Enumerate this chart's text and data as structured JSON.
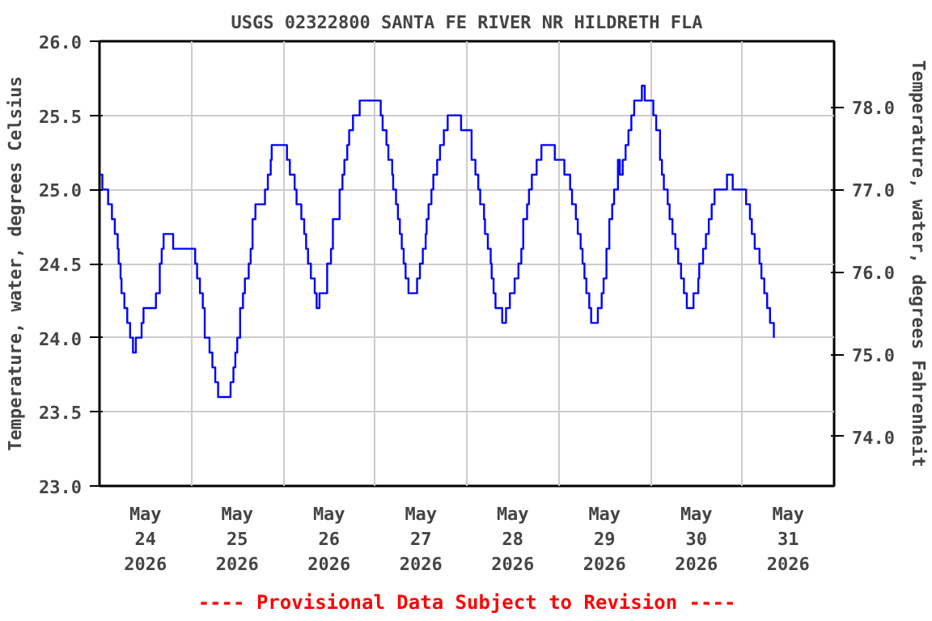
{
  "chart_data": {
    "type": "step",
    "title": "USGS 02322800 SANTA FE RIVER NR HILDRETH FLA",
    "ylabel": "Temperature, water, degrees Celsius",
    "y2label": "Temperature, water, degrees Fahrenheit",
    "annotations": [
      "---- Provisional Data Subject to Revision ----"
    ],
    "x": [
      "2026-05-24T00:00",
      "2026-05-24T00:45",
      "2026-05-24T02:15",
      "2026-05-24T03:15",
      "2026-05-24T04:00",
      "2026-05-24T04:45",
      "2026-05-24T05:00",
      "2026-05-24T05:30",
      "2026-05-24T05:45",
      "2026-05-24T06:30",
      "2026-05-24T07:15",
      "2026-05-24T08:00",
      "2026-05-24T08:45",
      "2026-05-24T09:30",
      "2026-05-24T11:00",
      "2026-05-24T11:30",
      "2026-05-24T14:15",
      "2026-05-24T14:45",
      "2026-05-24T15:45",
      "2026-05-24T16:15",
      "2026-05-24T16:45",
      "2026-05-24T18:30",
      "2026-05-24T19:15",
      "2026-05-25T00:30",
      "2026-05-25T01:00",
      "2026-05-25T01:30",
      "2026-05-25T02:15",
      "2026-05-25T03:00",
      "2026-05-25T03:30",
      "2026-05-25T04:45",
      "2026-05-25T05:30",
      "2026-05-25T06:15",
      "2026-05-25T07:00",
      "2026-05-25T09:30",
      "2026-05-25T10:15",
      "2026-05-25T11:00",
      "2026-05-25T11:30",
      "2026-05-25T12:00",
      "2026-05-25T12:45",
      "2026-05-25T13:30",
      "2026-05-25T14:00",
      "2026-05-25T15:00",
      "2026-05-25T15:30",
      "2026-05-25T16:00",
      "2026-05-25T16:45",
      "2026-05-25T18:30",
      "2026-05-25T19:15",
      "2026-05-25T20:00",
      "2026-05-25T20:45",
      "2026-05-25T21:00",
      "2026-05-26T00:30",
      "2026-05-26T01:00",
      "2026-05-26T01:45",
      "2026-05-26T03:00",
      "2026-05-26T03:30",
      "2026-05-26T04:45",
      "2026-05-26T05:30",
      "2026-05-26T06:00",
      "2026-05-26T06:30",
      "2026-05-26T07:15",
      "2026-05-26T08:15",
      "2026-05-26T08:45",
      "2026-05-26T09:30",
      "2026-05-26T11:00",
      "2026-05-26T11:30",
      "2026-05-26T12:30",
      "2026-05-26T13:00",
      "2026-05-26T14:15",
      "2026-05-26T14:45",
      "2026-05-26T15:30",
      "2026-05-26T16:00",
      "2026-05-26T16:45",
      "2026-05-26T17:15",
      "2026-05-26T18:15",
      "2026-05-26T19:00",
      "2026-05-26T20:00",
      "2026-05-27T01:00",
      "2026-05-27T01:30",
      "2026-05-27T02:00",
      "2026-05-27T03:00",
      "2026-05-27T03:30",
      "2026-05-27T04:30",
      "2026-05-27T04:45",
      "2026-05-27T05:30",
      "2026-05-27T06:00",
      "2026-05-27T06:30",
      "2026-05-27T07:00",
      "2026-05-27T07:30",
      "2026-05-27T08:00",
      "2026-05-27T08:45",
      "2026-05-27T10:15",
      "2026-05-27T11:00",
      "2026-05-27T11:45",
      "2026-05-27T12:30",
      "2026-05-27T13:15",
      "2026-05-27T13:30",
      "2026-05-27T14:00",
      "2026-05-27T14:45",
      "2026-05-27T15:15",
      "2026-05-27T16:15",
      "2026-05-27T17:00",
      "2026-05-27T18:00",
      "2026-05-27T19:00",
      "2026-05-27T21:45",
      "2026-05-27T22:30",
      "2026-05-28T00:45",
      "2026-05-28T01:15",
      "2026-05-28T02:15",
      "2026-05-28T03:00",
      "2026-05-28T03:30",
      "2026-05-28T04:30",
      "2026-05-28T04:45",
      "2026-05-28T05:30",
      "2026-05-28T06:15",
      "2026-05-28T06:30",
      "2026-05-28T07:00",
      "2026-05-28T07:30",
      "2026-05-28T09:15",
      "2026-05-28T10:15",
      "2026-05-28T11:15",
      "2026-05-28T12:30",
      "2026-05-28T13:30",
      "2026-05-28T14:15",
      "2026-05-28T14:45",
      "2026-05-28T15:45",
      "2026-05-28T16:15",
      "2026-05-28T17:00",
      "2026-05-28T18:15",
      "2026-05-28T19:30",
      "2026-05-28T22:30",
      "2026-05-28T23:00",
      "2026-05-29T00:45",
      "2026-05-29T01:30",
      "2026-05-29T03:00",
      "2026-05-29T03:30",
      "2026-05-29T04:30",
      "2026-05-29T05:00",
      "2026-05-29T05:45",
      "2026-05-29T06:15",
      "2026-05-29T06:45",
      "2026-05-29T07:15",
      "2026-05-29T08:00",
      "2026-05-29T08:30",
      "2026-05-29T09:30",
      "2026-05-29T10:15",
      "2026-05-29T11:15",
      "2026-05-29T11:45",
      "2026-05-29T12:30",
      "2026-05-29T13:15",
      "2026-05-29T14:00",
      "2026-05-29T14:30",
      "2026-05-29T15:30",
      "2026-05-29T16:00",
      "2026-05-29T16:45",
      "2026-05-29T17:30",
      "2026-05-29T18:15",
      "2026-05-29T19:00",
      "2026-05-29T19:45",
      "2026-05-29T21:00",
      "2026-05-29T21:45",
      "2026-05-29T22:30",
      "2026-05-30T00:00",
      "2026-05-30T00:45",
      "2026-05-30T01:30",
      "2026-05-30T02:30",
      "2026-05-30T03:00",
      "2026-05-30T03:30",
      "2026-05-30T04:30",
      "2026-05-30T05:00",
      "2026-05-30T05:45",
      "2026-05-30T06:30",
      "2026-05-30T07:15",
      "2026-05-30T08:00",
      "2026-05-30T08:45",
      "2026-05-30T09:30",
      "2026-05-30T11:00",
      "2026-05-30T11:15",
      "2026-05-30T12:30",
      "2026-05-30T12:45",
      "2026-05-30T13:45",
      "2026-05-30T14:30",
      "2026-05-30T15:15",
      "2026-05-30T16:00",
      "2026-05-30T16:45",
      "2026-05-30T19:30",
      "2026-05-30T20:00",
      "2026-05-30T21:00",
      "2026-05-30T21:30",
      "2026-05-31T00:30",
      "2026-05-31T01:00",
      "2026-05-31T02:00",
      "2026-05-31T02:30",
      "2026-05-31T03:15",
      "2026-05-31T04:30",
      "2026-05-31T05:00",
      "2026-05-31T05:45",
      "2026-05-31T06:30",
      "2026-05-31T07:15",
      "2026-05-31T08:15"
    ],
    "series": [
      {
        "color": "#0000ff",
        "values": [
          25.1,
          25.0,
          24.9,
          24.8,
          24.7,
          24.6,
          24.5,
          24.4,
          24.3,
          24.2,
          24.1,
          24.0,
          23.9,
          24.0,
          24.1,
          24.2,
          24.2,
          24.3,
          24.5,
          24.6,
          24.7,
          24.7,
          24.6,
          24.6,
          24.5,
          24.4,
          24.3,
          24.2,
          24.0,
          23.9,
          23.8,
          23.7,
          23.6,
          23.6,
          23.7,
          23.8,
          23.9,
          24.0,
          24.2,
          24.3,
          24.4,
          24.5,
          24.6,
          24.8,
          24.9,
          24.9,
          25.0,
          25.1,
          25.2,
          25.3,
          25.3,
          25.2,
          25.1,
          25.0,
          24.9,
          24.8,
          24.7,
          24.6,
          24.5,
          24.4,
          24.3,
          24.2,
          24.3,
          24.3,
          24.5,
          24.6,
          24.8,
          24.8,
          25.0,
          25.1,
          25.2,
          25.3,
          25.4,
          25.5,
          25.5,
          25.6,
          25.6,
          25.5,
          25.4,
          25.3,
          25.2,
          25.1,
          25.0,
          24.9,
          24.8,
          24.7,
          24.6,
          24.5,
          24.4,
          24.3,
          24.3,
          24.4,
          24.5,
          24.6,
          24.7,
          24.8,
          24.9,
          25.0,
          25.1,
          25.2,
          25.3,
          25.4,
          25.5,
          25.5,
          25.4,
          25.4,
          25.2,
          25.1,
          25.0,
          24.9,
          24.8,
          24.7,
          24.6,
          24.5,
          24.4,
          24.3,
          24.2,
          24.1,
          24.2,
          24.3,
          24.4,
          24.5,
          24.6,
          24.8,
          24.9,
          25.0,
          25.1,
          25.2,
          25.3,
          25.3,
          25.2,
          25.2,
          25.1,
          25.0,
          24.9,
          24.8,
          24.7,
          24.6,
          24.5,
          24.4,
          24.3,
          24.2,
          24.1,
          24.1,
          24.2,
          24.3,
          24.4,
          24.6,
          24.8,
          24.9,
          25.0,
          25.2,
          25.1,
          25.2,
          25.3,
          25.4,
          25.5,
          25.6,
          25.6,
          25.7,
          25.6,
          25.6,
          25.5,
          25.4,
          25.2,
          25.1,
          25.0,
          24.9,
          24.8,
          24.7,
          24.6,
          24.5,
          24.4,
          24.3,
          24.2,
          24.2,
          24.3,
          24.4,
          24.5,
          24.6,
          24.7,
          24.8,
          24.9,
          25.0,
          25.0,
          25.1,
          25.1,
          25.0,
          25.0,
          24.9,
          24.8,
          24.7,
          24.6,
          24.5,
          24.4,
          24.3,
          24.2,
          24.1,
          24.0
        ]
      }
    ],
    "xlim": [
      "2026-05-24T00:00",
      "2026-06-01T00:00"
    ],
    "xticks": [
      {
        "value": "2026-05-24T12:00",
        "label": "May\n24\n2026"
      },
      {
        "value": "2026-05-25T12:00",
        "label": "May\n25\n2026"
      },
      {
        "value": "2026-05-26T12:00",
        "label": "May\n26\n2026"
      },
      {
        "value": "2026-05-27T12:00",
        "label": "May\n27\n2026"
      },
      {
        "value": "2026-05-28T12:00",
        "label": "May\n28\n2026"
      },
      {
        "value": "2026-05-29T12:00",
        "label": "May\n29\n2026"
      },
      {
        "value": "2026-05-30T12:00",
        "label": "May\n30\n2026"
      },
      {
        "value": "2026-05-31T12:00",
        "label": "May\n31\n2026"
      },
      {
        "value": "2026-05-25T00:00",
        "label": null
      },
      {
        "value": "2026-05-26T00:00",
        "label": null
      },
      {
        "value": "2026-05-27T00:00",
        "label": null
      },
      {
        "value": "2026-05-28T00:00",
        "label": null
      },
      {
        "value": "2026-05-29T00:00",
        "label": null
      },
      {
        "value": "2026-05-30T00:00",
        "label": null
      },
      {
        "value": "2026-05-31T00:00",
        "label": null
      }
    ],
    "ylim": [
      23.0,
      26.0
    ],
    "yticks": [
      {
        "value": 23.0,
        "label": "23.0"
      },
      {
        "value": 23.5,
        "label": "23.5"
      },
      {
        "value": 24.0,
        "label": "24.0"
      },
      {
        "value": 24.5,
        "label": "24.5"
      },
      {
        "value": 25.0,
        "label": "25.0"
      },
      {
        "value": 25.5,
        "label": "25.5"
      },
      {
        "value": 26.0,
        "label": "26.0"
      }
    ],
    "y2lim": [
      73.4,
      78.8
    ],
    "y2ticks": [
      {
        "value": 74,
        "label": "74.0"
      },
      {
        "value": 75,
        "label": "75.0"
      },
      {
        "value": 76,
        "label": "76.0"
      },
      {
        "value": 77,
        "label": "77.0"
      },
      {
        "value": 78,
        "label": "78.0"
      }
    ],
    "grid": true,
    "line_style": "solid"
  }
}
